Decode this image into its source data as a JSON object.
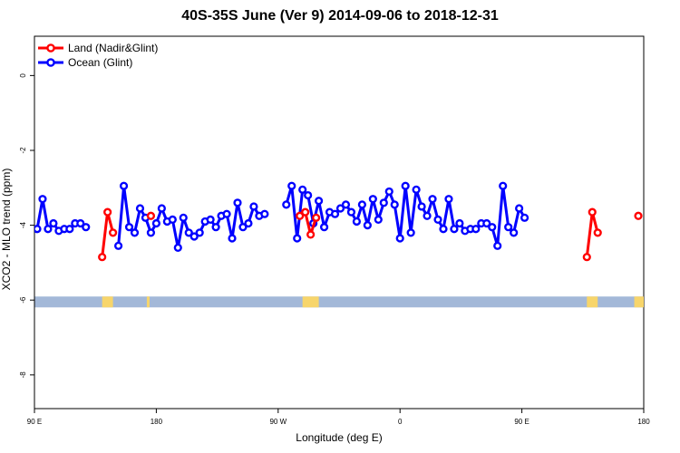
{
  "chart_data": {
    "type": "line",
    "title": "40S-35S June (Ver 9)   2014-09-06 to 2018-12-31",
    "xlabel": "Longitude (deg E)",
    "ylabel": "XCO2 - MLO trend (ppm)",
    "x_axis_unwrapped_range": [
      90,
      450
    ],
    "x_ticks": [
      {
        "value": 90,
        "label": "90 E"
      },
      {
        "value": 180,
        "label": "180"
      },
      {
        "value": 270,
        "label": "90 W"
      },
      {
        "value": 360,
        "label": "0"
      },
      {
        "value": 450,
        "label": "90 E"
      },
      {
        "value": 540,
        "label": "180"
      }
    ],
    "xlim": [
      90,
      540
    ],
    "ylim": [
      -8.9,
      1.05
    ],
    "y_ticks": [
      0,
      -2,
      -4,
      -6,
      -8
    ],
    "grid": false,
    "legend_position": "top-left",
    "land_strip": {
      "y": -6.05,
      "color": "#a3b8d8",
      "land_color": "#f7d56b"
    },
    "series": [
      {
        "name": "Land (Nadir&Glint)",
        "color": "#ff0000",
        "segments": [
          [
            [
              140,
              -4.85
            ],
            [
              144,
              -3.65
            ],
            [
              148,
              -4.2
            ]
          ],
          [
            [
              176,
              -3.75
            ]
          ],
          [
            [
              286,
              -3.75
            ],
            [
              290,
              -3.65
            ],
            [
              294,
              -4.25
            ],
            [
              298,
              -3.8
            ]
          ],
          [
            [
              498,
              -4.85
            ],
            [
              502,
              -3.65
            ],
            [
              506,
              -4.2
            ]
          ],
          [
            [
              536,
              -3.75
            ]
          ]
        ]
      },
      {
        "name": "Ocean (Glint)",
        "color": "#0000ff",
        "points": [
          [
            92,
            -4.1
          ],
          [
            96,
            -3.3
          ],
          [
            100,
            -4.1
          ],
          [
            104,
            -3.95
          ],
          [
            108,
            -4.15
          ],
          [
            112,
            -4.1
          ],
          [
            116,
            -4.1
          ],
          [
            120,
            -3.95
          ],
          [
            124,
            -3.95
          ],
          [
            128,
            -4.05
          ],
          [
            152,
            -4.55
          ],
          [
            156,
            -2.95
          ],
          [
            160,
            -4.05
          ],
          [
            164,
            -4.2
          ],
          [
            168,
            -3.55
          ],
          [
            172,
            -3.8
          ],
          [
            176,
            -4.2
          ],
          [
            180,
            -3.95
          ],
          [
            184,
            -3.55
          ],
          [
            188,
            -3.9
          ],
          [
            192,
            -3.85
          ],
          [
            196,
            -4.6
          ],
          [
            200,
            -3.8
          ],
          [
            204,
            -4.2
          ],
          [
            208,
            -4.3
          ],
          [
            212,
            -4.2
          ],
          [
            216,
            -3.9
          ],
          [
            220,
            -3.85
          ],
          [
            224,
            -4.05
          ],
          [
            228,
            -3.75
          ],
          [
            232,
            -3.7
          ],
          [
            236,
            -4.35
          ],
          [
            240,
            -3.4
          ],
          [
            244,
            -4.05
          ],
          [
            248,
            -3.95
          ],
          [
            252,
            -3.5
          ],
          [
            256,
            -3.75
          ],
          [
            260,
            -3.7
          ],
          [
            276,
            -3.45
          ],
          [
            280,
            -2.95
          ],
          [
            284,
            -4.35
          ],
          [
            288,
            -3.05
          ],
          [
            292,
            -3.2
          ],
          [
            296,
            -3.95
          ],
          [
            300,
            -3.35
          ],
          [
            304,
            -4.05
          ],
          [
            308,
            -3.65
          ],
          [
            312,
            -3.7
          ],
          [
            316,
            -3.55
          ],
          [
            320,
            -3.45
          ],
          [
            324,
            -3.65
          ],
          [
            328,
            -3.9
          ],
          [
            332,
            -3.45
          ],
          [
            336,
            -4.0
          ],
          [
            340,
            -3.3
          ],
          [
            344,
            -3.85
          ],
          [
            348,
            -3.4
          ],
          [
            352,
            -3.1
          ],
          [
            356,
            -3.45
          ],
          [
            360,
            -4.35
          ],
          [
            364,
            -2.95
          ],
          [
            368,
            -4.2
          ],
          [
            372,
            -3.05
          ],
          [
            376,
            -3.5
          ],
          [
            380,
            -3.75
          ],
          [
            384,
            -3.3
          ],
          [
            388,
            -3.85
          ],
          [
            392,
            -4.1
          ],
          [
            396,
            -3.3
          ],
          [
            400,
            -4.1
          ],
          [
            404,
            -3.95
          ],
          [
            408,
            -4.15
          ],
          [
            412,
            -4.1
          ],
          [
            416,
            -4.1
          ],
          [
            420,
            -3.95
          ],
          [
            424,
            -3.95
          ],
          [
            428,
            -4.05
          ],
          [
            432,
            -4.55
          ],
          [
            436,
            -2.95
          ],
          [
            440,
            -4.05
          ],
          [
            444,
            -4.2
          ],
          [
            448,
            -3.55
          ],
          [
            452,
            -3.8
          ]
        ]
      }
    ]
  }
}
